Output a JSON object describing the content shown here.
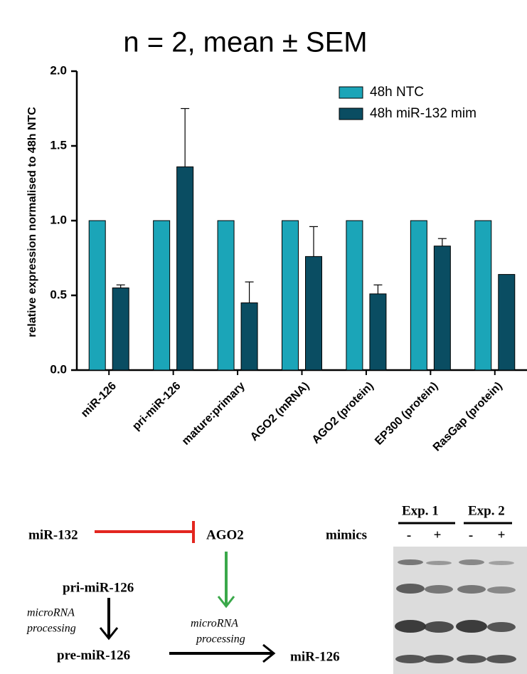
{
  "chart_data": {
    "type": "bar",
    "title": "n = 2, mean ± SEM",
    "y_label": "relative expression normalised to 48h NTC",
    "categories": [
      "miR-126",
      "pri-miR-126",
      "mature:primary",
      "AGO2 (mRNA)",
      "AGO2 (protein)",
      "EP300 (protein)",
      "RasGap (protein)"
    ],
    "series": [
      {
        "name": "48h NTC",
        "color": "#1ba5b8",
        "values": [
          1,
          1,
          1,
          1,
          1,
          1,
          1
        ]
      },
      {
        "name": "48h miR-132 mim",
        "color": "#0a4d62",
        "values": [
          0.55,
          1.36,
          0.45,
          0.76,
          0.51,
          0.83,
          0.64
        ],
        "errors": [
          0.02,
          0.39,
          0.14,
          0.2,
          0.06,
          0.05,
          null
        ]
      }
    ],
    "ylim": [
      0,
      2
    ],
    "yticks": [
      {
        "value": 0,
        "label": "0.0"
      },
      0.5,
      {
        "value": 1,
        "label": "1.0"
      },
      1.5,
      {
        "value": 2,
        "label": "2.0"
      }
    ],
    "grid": false,
    "legend": "top-right"
  },
  "diagram": {
    "mir132": "miR-132",
    "ago2": "AGO2",
    "pri": "pri-miR-126",
    "pre": "pre-miR-126",
    "mature": "miR-126",
    "processing_left": [
      "microRNA",
      "processing"
    ],
    "processing_right": [
      "microRNA",
      "processing"
    ]
  },
  "blot": {
    "experiments": [
      "Exp. 1",
      "Exp. 2"
    ],
    "row_label": "mimics",
    "signs": [
      "-",
      "+",
      "-",
      "+"
    ]
  }
}
